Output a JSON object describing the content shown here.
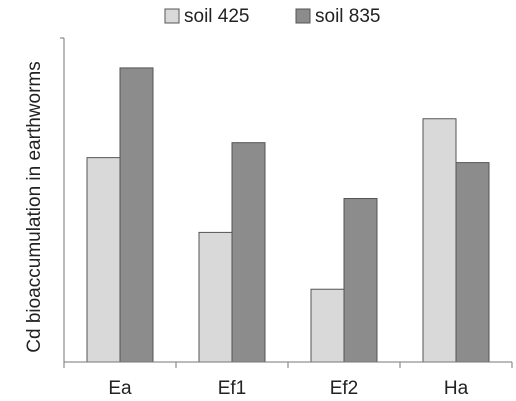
{
  "chart_data": {
    "type": "bar",
    "categories": [
      "Ea",
      "Ef1",
      "Ef2",
      "Ha"
    ],
    "series": [
      {
        "name": "soil 425",
        "values": [
          205,
          130,
          73,
          244
        ],
        "color": "#d9d9d9"
      },
      {
        "name": "soil 835",
        "values": [
          295,
          220,
          164,
          200
        ],
        "color": "#8c8c8c"
      }
    ],
    "title": "",
    "xlabel": "",
    "ylabel": "Cd bioaccumulation in earthworms",
    "ylim": [
      0,
      325
    ],
    "grid": false,
    "legend_position": "top"
  }
}
